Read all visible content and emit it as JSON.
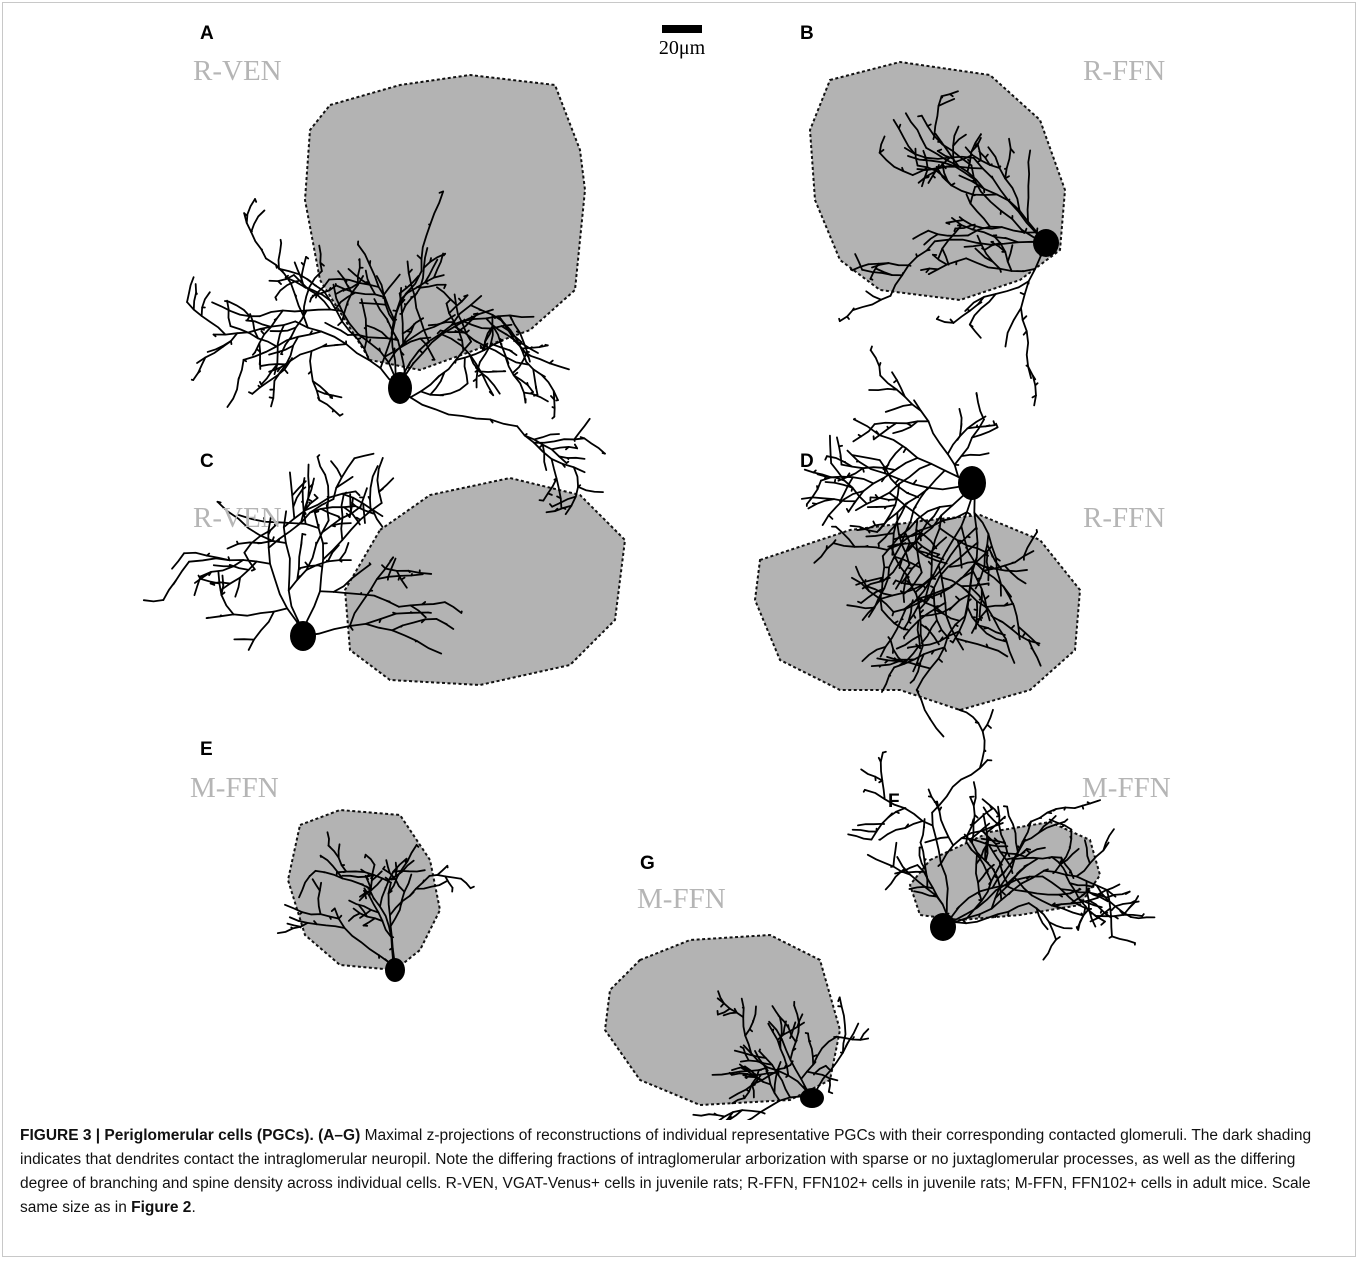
{
  "figure": {
    "scale_bar": "20μm",
    "panels": [
      {
        "letter": "A",
        "label": "R-VEN"
      },
      {
        "letter": "B",
        "label": "R-FFN"
      },
      {
        "letter": "C",
        "label": "R-VEN"
      },
      {
        "letter": "D",
        "label": "R-FFN"
      },
      {
        "letter": "E",
        "label": "M-FFN"
      },
      {
        "letter": "F",
        "label": "M-FFN"
      },
      {
        "letter": "G",
        "label": "M-FFN"
      }
    ],
    "caption": {
      "title": "FIGURE 3 | Periglomerular cells (PGCs). (A–G)",
      "text": " Maximal z-projections of reconstructions of individual representative PGCs with their corresponding contacted glomeruli. The dark shading indicates that dendrites contact the intraglomerular neuropil. Note the differing fractions of intraglomerular arborization with sparse or no juxtaglomerular processes, as well as the differing degree of branching and spine density across individual cells. R-VEN, VGAT-Venus+ cells in juvenile rats; R-FFN, FFN102+ cells in juvenile rats; M-FFN, FFN102+ cells in adult mice. Scale same size as in ",
      "ref": "Figure 2",
      "end": "."
    }
  }
}
